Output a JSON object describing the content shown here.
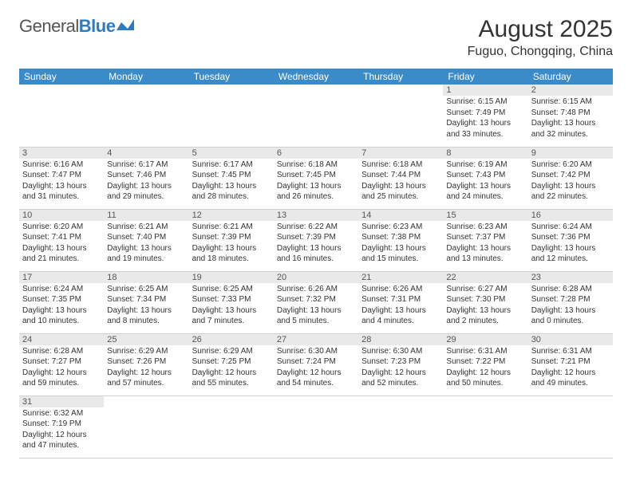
{
  "logo": {
    "text_a": "General",
    "text_b": "Blue"
  },
  "title": "August 2025",
  "location": "Fuguo, Chongqing, China",
  "colors": {
    "header_bg": "#3b8bc9",
    "header_fg": "#ffffff",
    "daynum_bg": "#e9e9e9",
    "border": "#d0d0d0",
    "text": "#333333",
    "logo_gray": "#555555",
    "logo_blue": "#2f7bbf"
  },
  "columns": [
    "Sunday",
    "Monday",
    "Tuesday",
    "Wednesday",
    "Thursday",
    "Friday",
    "Saturday"
  ],
  "weeks": [
    [
      null,
      null,
      null,
      null,
      null,
      {
        "n": "1",
        "sr": "6:15 AM",
        "ss": "7:49 PM",
        "dl": "13 hours and 33 minutes."
      },
      {
        "n": "2",
        "sr": "6:15 AM",
        "ss": "7:48 PM",
        "dl": "13 hours and 32 minutes."
      }
    ],
    [
      {
        "n": "3",
        "sr": "6:16 AM",
        "ss": "7:47 PM",
        "dl": "13 hours and 31 minutes."
      },
      {
        "n": "4",
        "sr": "6:17 AM",
        "ss": "7:46 PM",
        "dl": "13 hours and 29 minutes."
      },
      {
        "n": "5",
        "sr": "6:17 AM",
        "ss": "7:45 PM",
        "dl": "13 hours and 28 minutes."
      },
      {
        "n": "6",
        "sr": "6:18 AM",
        "ss": "7:45 PM",
        "dl": "13 hours and 26 minutes."
      },
      {
        "n": "7",
        "sr": "6:18 AM",
        "ss": "7:44 PM",
        "dl": "13 hours and 25 minutes."
      },
      {
        "n": "8",
        "sr": "6:19 AM",
        "ss": "7:43 PM",
        "dl": "13 hours and 24 minutes."
      },
      {
        "n": "9",
        "sr": "6:20 AM",
        "ss": "7:42 PM",
        "dl": "13 hours and 22 minutes."
      }
    ],
    [
      {
        "n": "10",
        "sr": "6:20 AM",
        "ss": "7:41 PM",
        "dl": "13 hours and 21 minutes."
      },
      {
        "n": "11",
        "sr": "6:21 AM",
        "ss": "7:40 PM",
        "dl": "13 hours and 19 minutes."
      },
      {
        "n": "12",
        "sr": "6:21 AM",
        "ss": "7:39 PM",
        "dl": "13 hours and 18 minutes."
      },
      {
        "n": "13",
        "sr": "6:22 AM",
        "ss": "7:39 PM",
        "dl": "13 hours and 16 minutes."
      },
      {
        "n": "14",
        "sr": "6:23 AM",
        "ss": "7:38 PM",
        "dl": "13 hours and 15 minutes."
      },
      {
        "n": "15",
        "sr": "6:23 AM",
        "ss": "7:37 PM",
        "dl": "13 hours and 13 minutes."
      },
      {
        "n": "16",
        "sr": "6:24 AM",
        "ss": "7:36 PM",
        "dl": "13 hours and 12 minutes."
      }
    ],
    [
      {
        "n": "17",
        "sr": "6:24 AM",
        "ss": "7:35 PM",
        "dl": "13 hours and 10 minutes."
      },
      {
        "n": "18",
        "sr": "6:25 AM",
        "ss": "7:34 PM",
        "dl": "13 hours and 8 minutes."
      },
      {
        "n": "19",
        "sr": "6:25 AM",
        "ss": "7:33 PM",
        "dl": "13 hours and 7 minutes."
      },
      {
        "n": "20",
        "sr": "6:26 AM",
        "ss": "7:32 PM",
        "dl": "13 hours and 5 minutes."
      },
      {
        "n": "21",
        "sr": "6:26 AM",
        "ss": "7:31 PM",
        "dl": "13 hours and 4 minutes."
      },
      {
        "n": "22",
        "sr": "6:27 AM",
        "ss": "7:30 PM",
        "dl": "13 hours and 2 minutes."
      },
      {
        "n": "23",
        "sr": "6:28 AM",
        "ss": "7:28 PM",
        "dl": "13 hours and 0 minutes."
      }
    ],
    [
      {
        "n": "24",
        "sr": "6:28 AM",
        "ss": "7:27 PM",
        "dl": "12 hours and 59 minutes."
      },
      {
        "n": "25",
        "sr": "6:29 AM",
        "ss": "7:26 PM",
        "dl": "12 hours and 57 minutes."
      },
      {
        "n": "26",
        "sr": "6:29 AM",
        "ss": "7:25 PM",
        "dl": "12 hours and 55 minutes."
      },
      {
        "n": "27",
        "sr": "6:30 AM",
        "ss": "7:24 PM",
        "dl": "12 hours and 54 minutes."
      },
      {
        "n": "28",
        "sr": "6:30 AM",
        "ss": "7:23 PM",
        "dl": "12 hours and 52 minutes."
      },
      {
        "n": "29",
        "sr": "6:31 AM",
        "ss": "7:22 PM",
        "dl": "12 hours and 50 minutes."
      },
      {
        "n": "30",
        "sr": "6:31 AM",
        "ss": "7:21 PM",
        "dl": "12 hours and 49 minutes."
      }
    ],
    [
      {
        "n": "31",
        "sr": "6:32 AM",
        "ss": "7:19 PM",
        "dl": "12 hours and 47 minutes."
      },
      null,
      null,
      null,
      null,
      null,
      null
    ]
  ],
  "labels": {
    "sunrise": "Sunrise:",
    "sunset": "Sunset:",
    "daylight": "Daylight:"
  }
}
